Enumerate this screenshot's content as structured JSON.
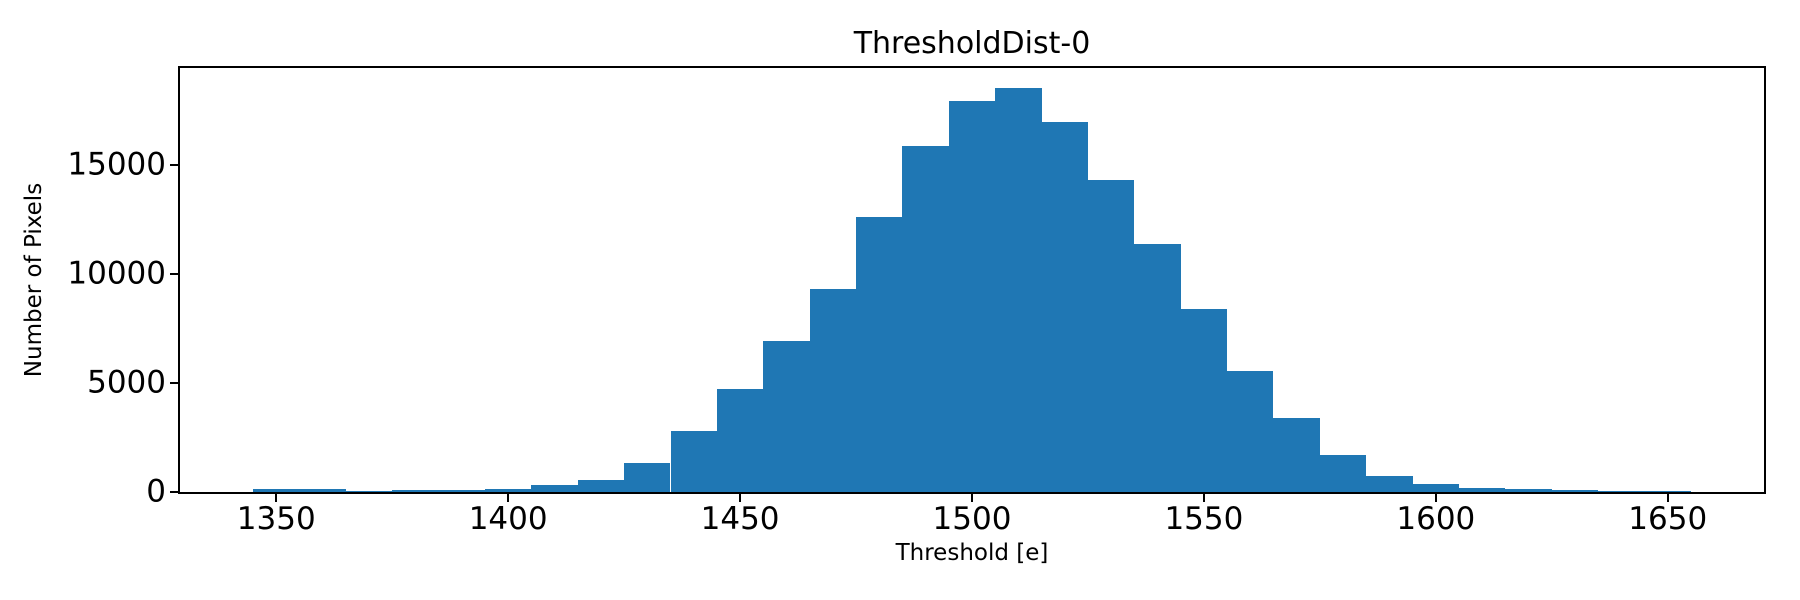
{
  "chart_data": {
    "type": "bar",
    "subtype": "histogram",
    "title": "ThresholdDist-0",
    "xlabel": "Threshold [e]",
    "ylabel": "Number of Pixels",
    "bar_color": "#1f77b4",
    "axis_color": "#000000",
    "grid": false,
    "legend": null,
    "bin_width": 10,
    "bin_edges": [
      1345,
      1355,
      1365,
      1375,
      1385,
      1395,
      1405,
      1415,
      1425,
      1435,
      1445,
      1455,
      1465,
      1475,
      1485,
      1495,
      1505,
      1515,
      1525,
      1535,
      1545,
      1555,
      1565,
      1575,
      1585,
      1595,
      1605,
      1615,
      1625,
      1635,
      1645,
      1655
    ],
    "counts": [
      130,
      130,
      10,
      90,
      95,
      160,
      300,
      550,
      1350,
      2800,
      4720,
      6930,
      9310,
      12615,
      15870,
      17935,
      18530,
      16970,
      14310,
      11380,
      8395,
      5550,
      3395,
      1700,
      735,
      365,
      205,
      135,
      75,
      60,
      50
    ],
    "xlim": [
      1329.25,
      1670.75
    ],
    "ylim": [
      0,
      19456
    ],
    "xticks": [
      1350,
      1400,
      1450,
      1500,
      1550,
      1600,
      1650
    ],
    "yticks": [
      0,
      5000,
      10000,
      15000
    ]
  }
}
